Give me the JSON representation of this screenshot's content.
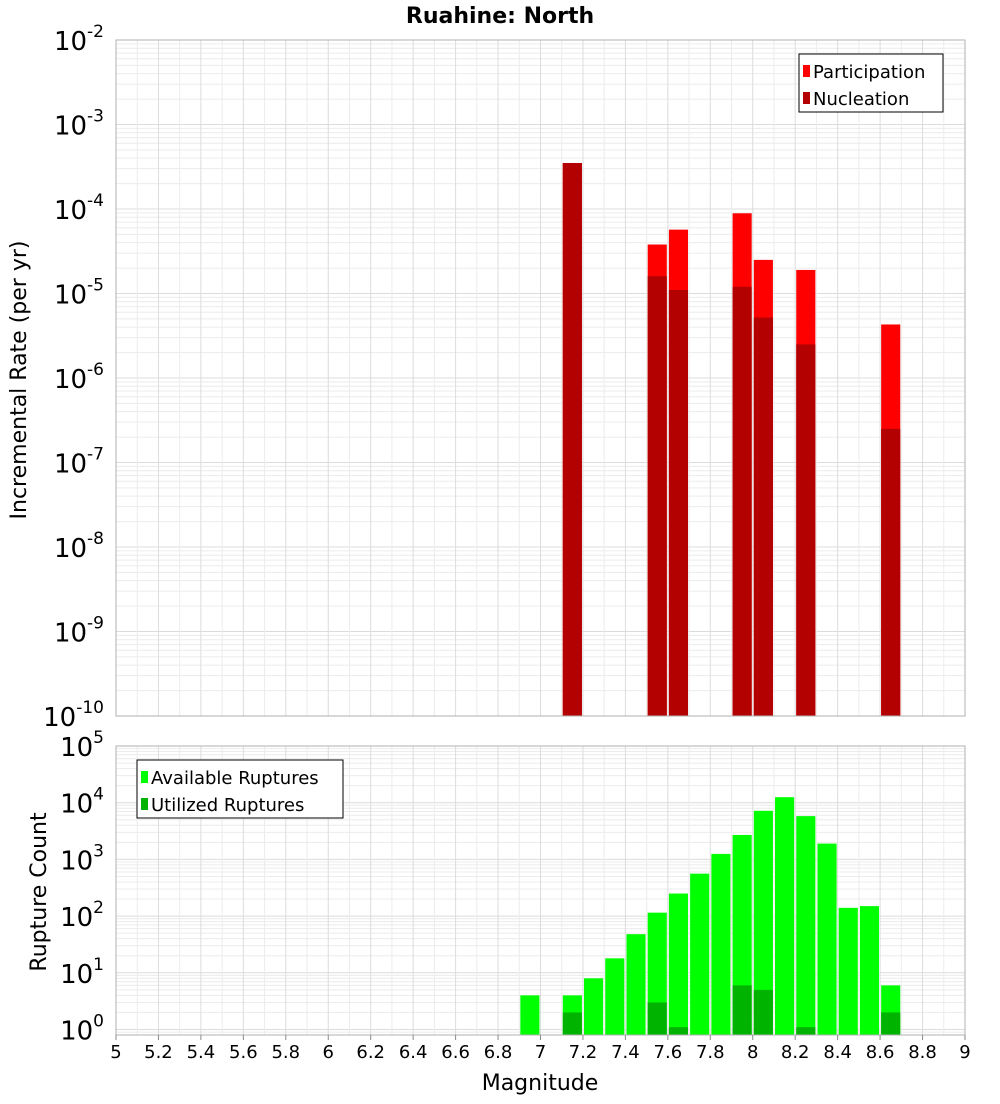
{
  "chart_data": [
    {
      "type": "bar",
      "title": "Ruahine: North",
      "xlabel": "",
      "ylabel": "Incremental Rate (per yr)",
      "x_scale": "linear",
      "y_scale": "log",
      "xlim": [
        5,
        9
      ],
      "ylim": [
        1e-10,
        0.01
      ],
      "y_ticks": [
        {
          "exp": "-10",
          "value": 1e-10
        },
        {
          "exp": "-9",
          "value": 1e-09
        },
        {
          "exp": "-8",
          "value": 1e-08
        },
        {
          "exp": "-7",
          "value": 1e-07
        },
        {
          "exp": "-6",
          "value": 1e-06
        },
        {
          "exp": "-5",
          "value": 1e-05
        },
        {
          "exp": "-4",
          "value": 0.0001
        },
        {
          "exp": "-3",
          "value": 0.001
        },
        {
          "exp": "-2",
          "value": 0.01
        }
      ],
      "grid": true,
      "legend_position": "top-right",
      "bar_width": 0.09,
      "series": [
        {
          "name": "Participation",
          "color": "#ff0000",
          "points": [
            {
              "x": 7.15,
              "y": 0.00035
            },
            {
              "x": 7.55,
              "y": 3.8e-05
            },
            {
              "x": 7.65,
              "y": 5.7e-05
            },
            {
              "x": 7.95,
              "y": 8.9e-05
            },
            {
              "x": 8.05,
              "y": 2.5e-05
            },
            {
              "x": 8.25,
              "y": 1.9e-05
            },
            {
              "x": 8.65,
              "y": 4.3e-06
            }
          ]
        },
        {
          "name": "Nucleation",
          "color": "#b30000",
          "points": [
            {
              "x": 7.15,
              "y": 0.00035
            },
            {
              "x": 7.55,
              "y": 1.6e-05
            },
            {
              "x": 7.65,
              "y": 1.1e-05
            },
            {
              "x": 7.95,
              "y": 1.2e-05
            },
            {
              "x": 8.05,
              "y": 5.2e-06
            },
            {
              "x": 8.25,
              "y": 2.5e-06
            },
            {
              "x": 8.65,
              "y": 2.5e-07
            }
          ]
        }
      ]
    },
    {
      "type": "bar",
      "title": "",
      "xlabel": "Magnitude",
      "ylabel": "Rupture Count",
      "x_scale": "linear",
      "y_scale": "log",
      "xlim": [
        5,
        9
      ],
      "ylim": [
        0.8,
        100000.0
      ],
      "x_ticks": [
        "5",
        "5.2",
        "5.4",
        "5.6",
        "5.8",
        "6",
        "6.2",
        "6.4",
        "6.6",
        "6.8",
        "7",
        "7.2",
        "7.4",
        "7.6",
        "7.8",
        "8",
        "8.2",
        "8.4",
        "8.6",
        "8.8",
        "9"
      ],
      "y_ticks": [
        {
          "exp": "0",
          "value": 1
        },
        {
          "exp": "1",
          "value": 10
        },
        {
          "exp": "2",
          "value": 100
        },
        {
          "exp": "3",
          "value": 1000
        },
        {
          "exp": "4",
          "value": 10000
        },
        {
          "exp": "5",
          "value": 100000
        }
      ],
      "grid": true,
      "legend_position": "top-left",
      "bar_width": 0.09,
      "series": [
        {
          "name": "Available Ruptures",
          "color": "#00ff00",
          "points": [
            {
              "x": 6.95,
              "y": 4
            },
            {
              "x": 7.15,
              "y": 4
            },
            {
              "x": 7.25,
              "y": 8
            },
            {
              "x": 7.35,
              "y": 18
            },
            {
              "x": 7.45,
              "y": 48
            },
            {
              "x": 7.55,
              "y": 115
            },
            {
              "x": 7.65,
              "y": 250
            },
            {
              "x": 7.75,
              "y": 560
            },
            {
              "x": 7.85,
              "y": 1250
            },
            {
              "x": 7.95,
              "y": 2700
            },
            {
              "x": 8.05,
              "y": 7200
            },
            {
              "x": 8.15,
              "y": 12500
            },
            {
              "x": 8.25,
              "y": 5800
            },
            {
              "x": 8.35,
              "y": 1900
            },
            {
              "x": 8.45,
              "y": 140
            },
            {
              "x": 8.55,
              "y": 150
            },
            {
              "x": 8.65,
              "y": 6
            }
          ]
        },
        {
          "name": "Utilized Ruptures",
          "color": "#00b300",
          "points": [
            {
              "x": 7.15,
              "y": 2
            },
            {
              "x": 7.55,
              "y": 3
            },
            {
              "x": 7.65,
              "y": 1.1
            },
            {
              "x": 7.95,
              "y": 6
            },
            {
              "x": 8.05,
              "y": 5
            },
            {
              "x": 8.25,
              "y": 1.1
            },
            {
              "x": 8.65,
              "y": 2
            }
          ]
        }
      ]
    }
  ]
}
